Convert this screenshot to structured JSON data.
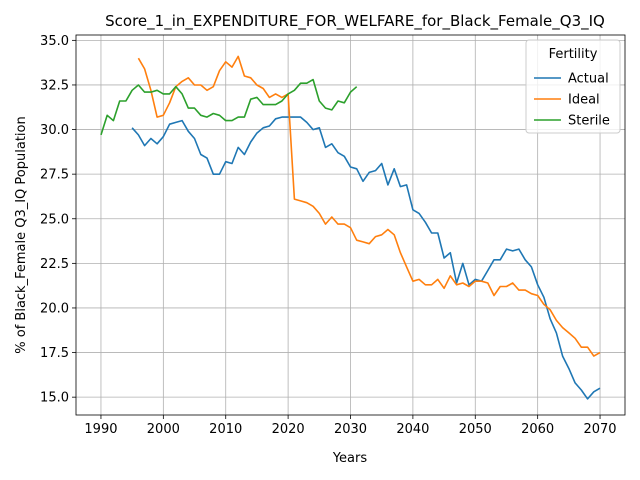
{
  "chart_data": {
    "type": "line",
    "title": "Score_1_in_EXPENDITURE_FOR_WELFARE_for_Black_Female_Q3_IQ",
    "xlabel": "Years",
    "ylabel": "% of Black_Female Q3_IQ Population",
    "xlim": [
      1986,
      2074
    ],
    "ylim": [
      14.0,
      35.3
    ],
    "xticks": [
      1990,
      2000,
      2010,
      2020,
      2030,
      2040,
      2050,
      2060,
      2070
    ],
    "yticks": [
      15.0,
      17.5,
      20.0,
      22.5,
      25.0,
      27.5,
      30.0,
      32.5,
      35.0
    ],
    "ytick_labels": [
      "15.0",
      "17.5",
      "20.0",
      "22.5",
      "25.0",
      "27.5",
      "30.0",
      "32.5",
      "35.0"
    ],
    "grid": true,
    "legend": {
      "title": "Fertility",
      "placement": "top-right"
    },
    "series": [
      {
        "name": "Actual",
        "color": "#1f77b4",
        "x": [
          1995,
          1996,
          1997,
          1998,
          1999,
          2000,
          2001,
          2002,
          2003,
          2004,
          2005,
          2006,
          2007,
          2008,
          2009,
          2010,
          2011,
          2012,
          2013,
          2014,
          2015,
          2016,
          2017,
          2018,
          2019,
          2020,
          2021,
          2022,
          2023,
          2024,
          2025,
          2026,
          2027,
          2028,
          2029,
          2030,
          2031,
          2032,
          2033,
          2034,
          2035,
          2036,
          2037,
          2038,
          2039,
          2040,
          2041,
          2042,
          2043,
          2044,
          2045,
          2046,
          2047,
          2048,
          2049,
          2050,
          2051,
          2052,
          2053,
          2054,
          2055,
          2056,
          2057,
          2058,
          2059,
          2060,
          2061,
          2062,
          2063,
          2064,
          2065,
          2066,
          2067,
          2068,
          2069,
          2070
        ],
        "values": [
          30.1,
          29.7,
          29.1,
          29.5,
          29.2,
          29.6,
          30.3,
          30.4,
          30.5,
          29.9,
          29.5,
          28.6,
          28.4,
          27.5,
          27.5,
          28.2,
          28.1,
          29.0,
          28.6,
          29.3,
          29.8,
          30.1,
          30.2,
          30.6,
          30.7,
          30.7,
          30.7,
          30.7,
          30.4,
          30.0,
          30.1,
          29.0,
          29.2,
          28.7,
          28.5,
          27.9,
          27.8,
          27.1,
          27.6,
          27.7,
          28.1,
          26.9,
          27.8,
          26.8,
          26.9,
          25.5,
          25.3,
          24.8,
          24.2,
          24.2,
          22.8,
          23.1,
          21.4,
          22.5,
          21.3,
          21.6,
          21.5,
          22.1,
          22.7,
          22.7,
          23.3,
          23.2,
          23.3,
          22.7,
          22.3,
          21.3,
          20.6,
          19.4,
          18.6,
          17.3,
          16.6,
          15.8,
          15.4,
          14.9,
          15.3,
          15.5
        ]
      },
      {
        "name": "Ideal",
        "color": "#ff7f0e",
        "x": [
          1996,
          1997,
          1998,
          1999,
          2000,
          2001,
          2002,
          2003,
          2004,
          2005,
          2006,
          2007,
          2008,
          2009,
          2010,
          2011,
          2012,
          2013,
          2014,
          2015,
          2016,
          2017,
          2018,
          2019,
          2020,
          2021,
          2022,
          2023,
          2024,
          2025,
          2026,
          2027,
          2028,
          2029,
          2030,
          2031,
          2032,
          2033,
          2034,
          2035,
          2036,
          2037,
          2038,
          2039,
          2040,
          2041,
          2042,
          2043,
          2044,
          2045,
          2046,
          2047,
          2048,
          2049,
          2050,
          2051,
          2052,
          2053,
          2054,
          2055,
          2056,
          2057,
          2058,
          2059,
          2060,
          2061,
          2062,
          2063,
          2064,
          2065,
          2066,
          2067,
          2068,
          2069,
          2070
        ],
        "values": [
          34.0,
          33.4,
          32.2,
          30.7,
          30.8,
          31.5,
          32.4,
          32.7,
          32.9,
          32.5,
          32.5,
          32.2,
          32.4,
          33.3,
          33.8,
          33.5,
          34.1,
          33.0,
          32.9,
          32.5,
          32.3,
          31.8,
          32.0,
          31.8,
          32.0,
          26.1,
          26.0,
          25.9,
          25.7,
          25.3,
          24.7,
          25.1,
          24.7,
          24.7,
          24.5,
          23.8,
          23.7,
          23.6,
          24.0,
          24.1,
          24.4,
          24.1,
          23.1,
          22.3,
          21.5,
          21.6,
          21.3,
          21.3,
          21.6,
          21.1,
          21.8,
          21.3,
          21.4,
          21.2,
          21.5,
          21.5,
          21.4,
          20.7,
          21.2,
          21.2,
          21.4,
          21.0,
          21.0,
          20.8,
          20.7,
          20.2,
          19.9,
          19.3,
          18.9,
          18.6,
          18.3,
          17.8,
          17.8,
          17.3,
          17.5
        ]
      },
      {
        "name": "Sterile",
        "color": "#2ca02c",
        "x": [
          1990,
          1991,
          1992,
          1993,
          1994,
          1995,
          1996,
          1997,
          1998,
          1999,
          2000,
          2001,
          2002,
          2003,
          2004,
          2005,
          2006,
          2007,
          2008,
          2009,
          2010,
          2011,
          2012,
          2013,
          2014,
          2015,
          2016,
          2017,
          2018,
          2019,
          2020,
          2021,
          2022,
          2023,
          2024,
          2025,
          2026,
          2027,
          2028,
          2029,
          2030,
          2031
        ],
        "values": [
          29.7,
          30.8,
          30.5,
          31.6,
          31.6,
          32.2,
          32.5,
          32.1,
          32.1,
          32.2,
          32.0,
          32.0,
          32.4,
          32.0,
          31.2,
          31.2,
          30.8,
          30.7,
          30.9,
          30.8,
          30.5,
          30.5,
          30.7,
          30.7,
          31.7,
          31.8,
          31.4,
          31.4,
          31.4,
          31.6,
          32.0,
          32.2,
          32.6,
          32.6,
          32.8,
          31.6,
          31.2,
          31.1,
          31.6,
          31.5,
          32.1,
          32.4
        ]
      }
    ]
  }
}
